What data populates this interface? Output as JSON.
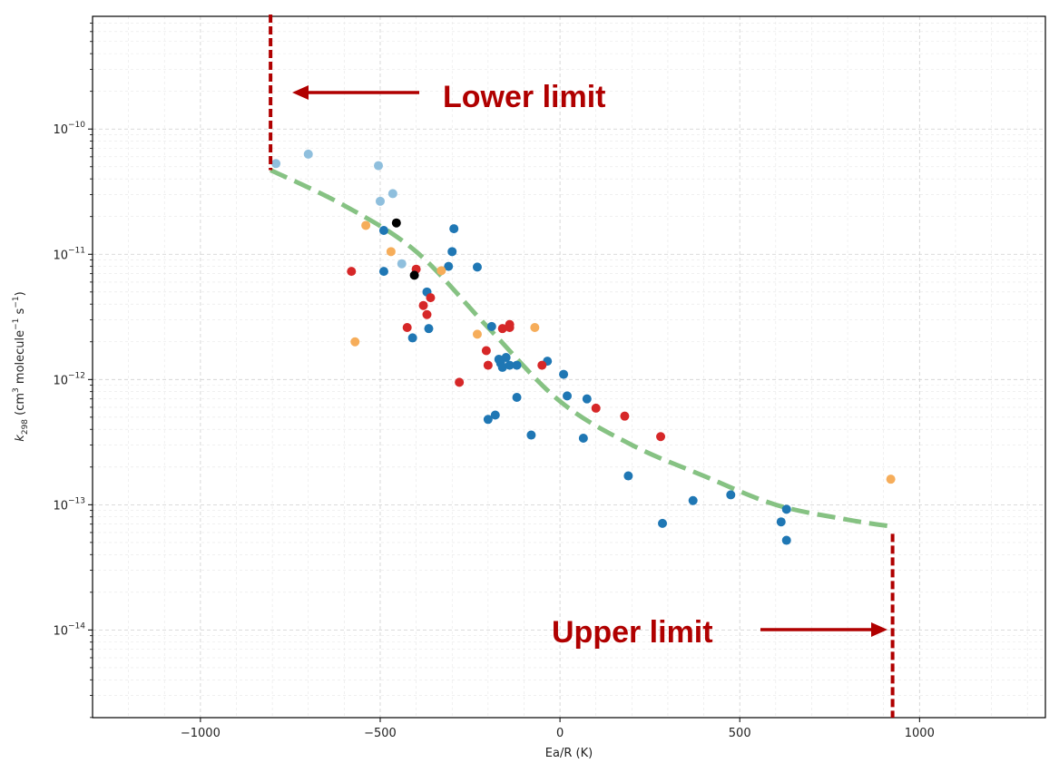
{
  "chart_data": {
    "type": "scatter",
    "xlabel": "Ea/R (K)",
    "ylabel": {
      "prefix": "k",
      "subscript": "298",
      "middle": " (cm",
      "sup1": "3",
      "middle2": " molecule",
      "sup2": "−1",
      "middle3": " s",
      "sup3": "−1",
      "suffix": ")"
    },
    "xlim": [
      -1300,
      1350
    ],
    "ylim_log10": [
      -14.7,
      -9.1
    ],
    "y_scale": "log",
    "grid": true,
    "x_ticks": [
      {
        "value": -1000,
        "label": "−1000"
      },
      {
        "value": -500,
        "label": "−500"
      },
      {
        "value": 0,
        "label": "0"
      },
      {
        "value": 500,
        "label": "500"
      },
      {
        "value": 1000,
        "label": "1000"
      }
    ],
    "y_ticks": [
      {
        "exp": -10,
        "base": "10",
        "sup": "−10"
      },
      {
        "exp": -11,
        "base": "10",
        "sup": "−11"
      },
      {
        "exp": -12,
        "base": "10",
        "sup": "−12"
      },
      {
        "exp": -13,
        "base": "10",
        "sup": "−13"
      },
      {
        "exp": -14,
        "base": "10",
        "sup": "−14"
      }
    ],
    "colors": {
      "dark_blue": "#1f77b4",
      "light_blue": "#8fbfdd",
      "red": "#d62728",
      "orange": "#f6ad5a",
      "black": "#000000",
      "fit": "#86c283",
      "limit": "#b00000"
    },
    "series": [
      {
        "color_key": "dark_blue",
        "points": [
          [
            -490,
            1.55e-11
          ],
          [
            -490,
            7.3e-12
          ],
          [
            -410,
            2.15e-12
          ],
          [
            -370,
            5e-12
          ],
          [
            -365,
            2.55e-12
          ],
          [
            -310,
            8e-12
          ],
          [
            -300,
            1.05e-11
          ],
          [
            -295,
            1.6e-11
          ],
          [
            -230,
            7.9e-12
          ],
          [
            -190,
            2.65e-12
          ],
          [
            -170,
            1.45e-12
          ],
          [
            -165,
            1.35e-12
          ],
          [
            -160,
            1.25e-12
          ],
          [
            -150,
            1.5e-12
          ],
          [
            -140,
            1.3e-12
          ],
          [
            -120,
            1.3e-12
          ],
          [
            -120,
            7.2e-13
          ],
          [
            -180,
            5.2e-13
          ],
          [
            -200,
            4.8e-13
          ],
          [
            -80,
            3.6e-13
          ],
          [
            -35,
            1.4e-12
          ],
          [
            10,
            1.1e-12
          ],
          [
            20,
            7.4e-13
          ],
          [
            65,
            3.4e-13
          ],
          [
            75,
            7e-13
          ],
          [
            190,
            1.7e-13
          ],
          [
            285,
            7.1e-14
          ],
          [
            370,
            1.08e-13
          ],
          [
            475,
            1.2e-13
          ],
          [
            615,
            7.3e-14
          ],
          [
            630,
            9.2e-14
          ],
          [
            630,
            5.2e-14
          ]
        ]
      },
      {
        "color_key": "light_blue",
        "points": [
          [
            -790,
            5.3e-11
          ],
          [
            -700,
            6.3e-11
          ],
          [
            -505,
            5.1e-11
          ],
          [
            -500,
            2.65e-11
          ],
          [
            -465,
            3.05e-11
          ],
          [
            -440,
            8.4e-12
          ]
        ]
      },
      {
        "color_key": "red",
        "points": [
          [
            -580,
            7.3e-12
          ],
          [
            -425,
            2.6e-12
          ],
          [
            -400,
            7.6e-12
          ],
          [
            -380,
            3.9e-12
          ],
          [
            -370,
            3.3e-12
          ],
          [
            -360,
            4.5e-12
          ],
          [
            -280,
            9.5e-13
          ],
          [
            -205,
            1.7e-12
          ],
          [
            -200,
            1.3e-12
          ],
          [
            -160,
            2.55e-12
          ],
          [
            -140,
            2.75e-12
          ],
          [
            -140,
            2.6e-12
          ],
          [
            -50,
            1.3e-12
          ],
          [
            100,
            5.9e-13
          ],
          [
            180,
            5.1e-13
          ],
          [
            280,
            3.5e-13
          ]
        ]
      },
      {
        "color_key": "orange",
        "points": [
          [
            -540,
            1.7e-11
          ],
          [
            -570,
            2e-12
          ],
          [
            -470,
            1.05e-11
          ],
          [
            -330,
            7.4e-12
          ],
          [
            -230,
            2.3e-12
          ],
          [
            -70,
            2.6e-12
          ],
          [
            920,
            1.6e-13
          ]
        ]
      },
      {
        "color_key": "black",
        "points": [
          [
            -455,
            1.78e-11
          ],
          [
            -405,
            6.8e-12
          ]
        ]
      }
    ],
    "fit_curve": [
      [
        -805,
        4.7e-11
      ],
      [
        -600,
        2.45e-11
      ],
      [
        -400,
        1.05e-11
      ],
      [
        -200,
        2.6e-12
      ],
      [
        0,
        6.7e-13
      ],
      [
        200,
        3e-13
      ],
      [
        400,
        1.7e-13
      ],
      [
        600,
        1e-13
      ],
      [
        800,
        7.6e-14
      ],
      [
        925,
        6.7e-14
      ]
    ],
    "annotations": {
      "lower_limit": {
        "label": "Lower limit",
        "x": -805
      },
      "upper_limit": {
        "label": "Upper limit",
        "x": 925
      }
    }
  }
}
